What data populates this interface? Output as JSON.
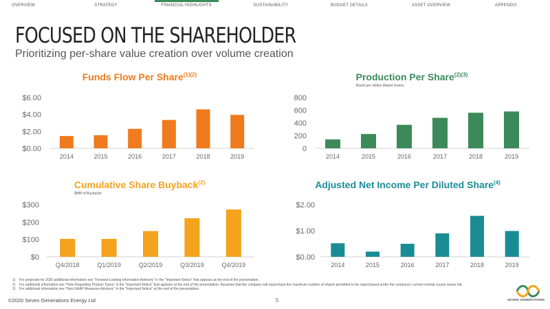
{
  "nav": {
    "items": [
      "OVERVIEW",
      "STRATEGY",
      "FINANCIAL HIGHLIGHTS",
      "SUSTAINABILITY",
      "BUDGET DETAILS",
      "ASSET OVERVIEW",
      "APPENDIX"
    ],
    "active": "FINANCIAL HIGHLIGHTS"
  },
  "page": {
    "title": "FOCUSED ON THE SHAREHOLDER",
    "subtitle": "Prioritizing per-share value creation over volume creation"
  },
  "colors": {
    "funds_flow": "#f07a1e",
    "production": "#3c8a5a",
    "buyback": "#f5a21c",
    "net_income": "#1a8c96",
    "nav_active": "#3c8a5a"
  },
  "chart_data": [
    {
      "id": "funds_flow",
      "type": "bar",
      "title": "Funds Flow Per Share",
      "title_sup": "(1)(2)",
      "subtitle": "",
      "categories": [
        "2014",
        "2015",
        "2016",
        "2017",
        "2018",
        "2019"
      ],
      "values": [
        1.45,
        1.55,
        2.3,
        3.35,
        4.6,
        3.95
      ],
      "ylim": [
        0,
        6
      ],
      "yticks": [
        "$0.00",
        "$2.00",
        "$4.00",
        "$6.00"
      ],
      "grid": false
    },
    {
      "id": "production",
      "type": "bar",
      "title": "Production Per Share",
      "title_sup": "(2)(3)",
      "subtitle": "Boe/d per million diluted shares",
      "categories": [
        "2014",
        "2015",
        "2016",
        "2017",
        "2018",
        "2019"
      ],
      "values": [
        140,
        225,
        370,
        480,
        560,
        580
      ],
      "ylim": [
        0,
        800
      ],
      "yticks": [
        "0",
        "200",
        "400",
        "600",
        "800"
      ],
      "grid": false
    },
    {
      "id": "buyback",
      "type": "bar",
      "title": "Cumulative Share Buyback",
      "title_sup": "(2)",
      "subtitle": "$MM of Buybacks",
      "categories": [
        "Q4/2018",
        "Q1/2019",
        "Q2/2019",
        "Q3/2019",
        "Q4/2019"
      ],
      "values": [
        103,
        103,
        148,
        222,
        272
      ],
      "ylim": [
        0,
        300
      ],
      "yticks": [
        "$0",
        "$100",
        "$200",
        "$300"
      ],
      "grid": false
    },
    {
      "id": "net_income",
      "type": "bar",
      "title": "Adjusted Net Income Per Diluted Share",
      "title_sup": "(4)",
      "subtitle": "",
      "categories": [
        "2014",
        "2015",
        "2016",
        "2017",
        "2018",
        "2019"
      ],
      "values": [
        0.52,
        0.2,
        0.5,
        0.9,
        1.57,
        0.99
      ],
      "ylim": [
        0,
        2
      ],
      "yticks": [
        "$0.00",
        "$1.00",
        "$2.00"
      ],
      "grid": false
    }
  ],
  "footnotes": [
    {
      "num": "1)",
      "text": "For projected for 2020 additional information see \"Forward-Looking Information Advisory\" in the \"Important Notice\" that appears at the end of the presentation."
    },
    {
      "num": "2)",
      "text": "For additional information see \"Note Regarding Product Types\" in the \"Important Notice\" that appears at the end of the presentation. Assumes that the company will repurchase the maximum number of shares permitted to be repurchased under the company's current normal course issuer bid."
    },
    {
      "num": "3)",
      "text": "For additional information see \"Non-GAAP Measures Advisory\" in the \"Important Notice\" at the end of the presentation."
    }
  ],
  "footer": {
    "copyright": "©2020 Seven Generations Energy Ltd",
    "page_number": "5",
    "logo_text": "SEVEN GENERATIONS"
  }
}
